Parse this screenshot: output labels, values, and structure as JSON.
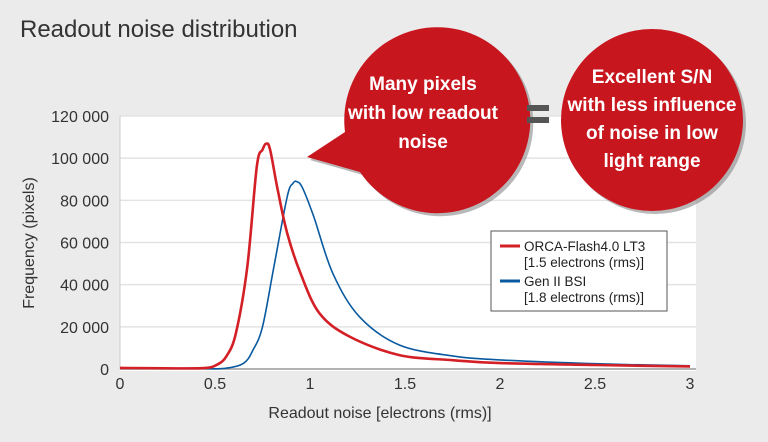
{
  "title": "Readout noise distribution",
  "callouts": {
    "left": [
      "Many pixels",
      "with low readout",
      "noise"
    ],
    "equals": "=",
    "right": [
      "Excellent S/N",
      "with less influence",
      "of noise in low",
      "light range"
    ]
  },
  "colors": {
    "callout": "#c8161e",
    "red_series": "#d31f26",
    "blue_series": "#0a5aa0"
  },
  "chart_data": {
    "type": "line",
    "title": "Readout noise distribution",
    "xlabel": "Readout noise [electrons (rms)]",
    "ylabel": "Frequency (pixels)",
    "xlim": [
      0,
      3
    ],
    "ylim": [
      0,
      120000
    ],
    "xticks": [
      "0",
      "0.5",
      "1",
      "1.5",
      "2",
      "2.5",
      "3"
    ],
    "yticks": [
      "0",
      "20 000",
      "40 000",
      "60 000",
      "80 000",
      "100 000",
      "120 000"
    ],
    "grid": "horizontal",
    "legend_position": "right",
    "series": [
      {
        "name": "ORCA-Flash4.0 LT3",
        "sublabel": "[1.5 electrons (rms)]",
        "color": "#d31f26",
        "x": [
          0,
          0.3,
          0.45,
          0.51,
          0.56,
          0.61,
          0.67,
          0.72,
          0.75,
          0.77,
          0.79,
          0.83,
          0.88,
          0.95,
          1.05,
          1.21,
          1.47,
          1.75,
          2.0,
          2.5,
          3.0
        ],
        "y": [
          500,
          300,
          500,
          2000,
          6000,
          17000,
          48500,
          96000,
          104000,
          106900,
          104000,
          85000,
          64400,
          45400,
          26400,
          15300,
          6600,
          4200,
          2800,
          1900,
          1200
        ]
      },
      {
        "name": "Gen II BSI",
        "sublabel": "[1.8 electrons (rms)]",
        "color": "#0a5aa0",
        "x": [
          0,
          0.4,
          0.55,
          0.65,
          0.7,
          0.75,
          0.81,
          0.88,
          0.91,
          0.93,
          0.96,
          1.02,
          1.12,
          1.26,
          1.47,
          1.75,
          2.0,
          2.5,
          3.0
        ],
        "y": [
          300,
          200,
          300,
          2700,
          9000,
          20000,
          48500,
          81700,
          88000,
          88900,
          86000,
          72200,
          45400,
          24800,
          11400,
          6200,
          4300,
          2500,
          1500
        ]
      }
    ]
  }
}
